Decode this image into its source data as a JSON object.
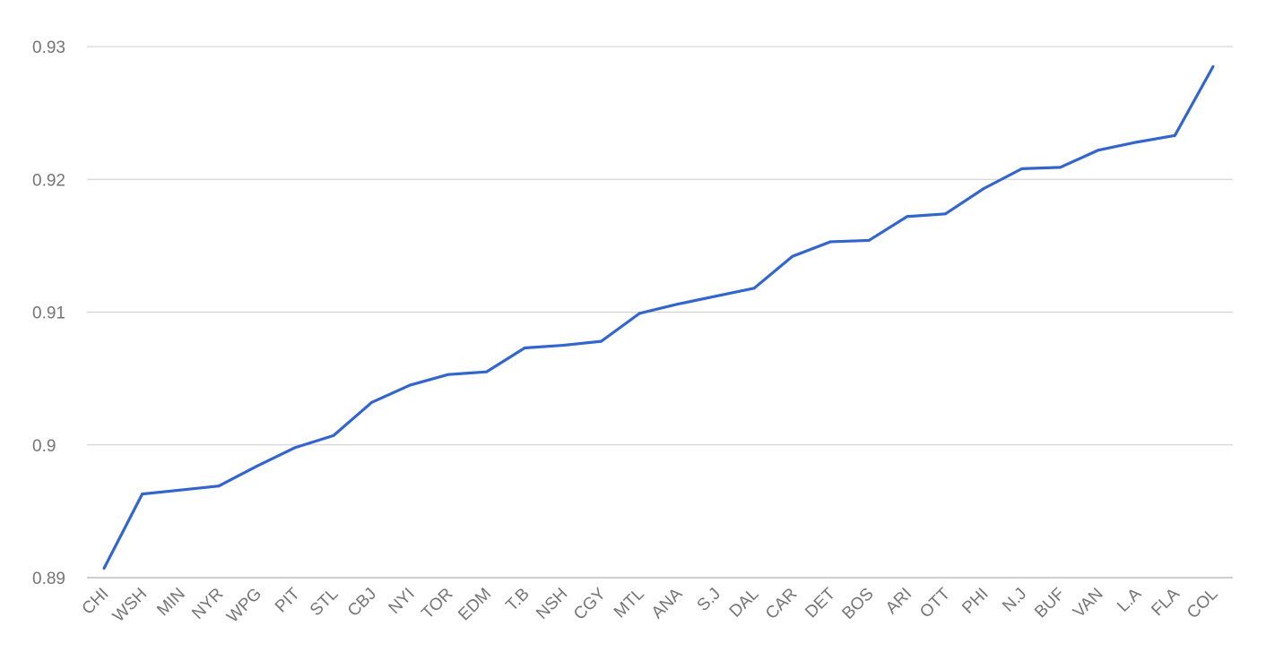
{
  "chart_data": {
    "type": "line",
    "title": "",
    "xlabel": "",
    "ylabel": "",
    "ylim": [
      0.89,
      0.93
    ],
    "yticks": [
      "0.89",
      "0.9",
      "0.91",
      "0.92",
      "0.93"
    ],
    "grid": true,
    "legend": "none",
    "line_color": "#3366cc",
    "categories": [
      "CHI",
      "WSH",
      "MIN",
      "NYR",
      "WPG",
      "PIT",
      "STL",
      "CBJ",
      "NYI",
      "TOR",
      "EDM",
      "T.B",
      "NSH",
      "CGY",
      "MTL",
      "ANA",
      "S.J",
      "DAL",
      "CAR",
      "DET",
      "BOS",
      "ARI",
      "OTT",
      "PHI",
      "N.J",
      "BUF",
      "VAN",
      "L.A",
      "FLA",
      "COL"
    ],
    "series": [
      {
        "values": [
          0.8907,
          0.8963,
          0.8966,
          0.8969,
          0.8984,
          0.8998,
          0.9007,
          0.9032,
          0.9045,
          0.9053,
          0.9055,
          0.9073,
          0.9075,
          0.9078,
          0.9099,
          0.9106,
          0.9112,
          0.9118,
          0.9142,
          0.9153,
          0.9154,
          0.9172,
          0.9174,
          0.9193,
          0.9208,
          0.9209,
          0.9222,
          0.9228,
          0.9233,
          0.9285
        ]
      }
    ]
  }
}
